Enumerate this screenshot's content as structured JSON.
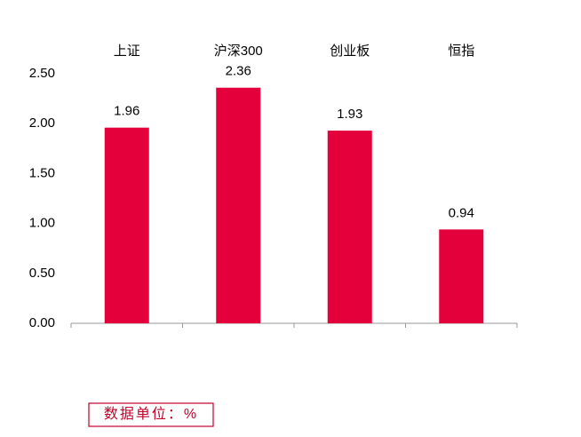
{
  "chart_data": {
    "type": "bar",
    "categories": [
      "上证",
      "沪深300",
      "创业板",
      "恒指"
    ],
    "values": [
      1.96,
      2.36,
      1.93,
      0.94
    ],
    "color": "#e4003a",
    "ylim": [
      0,
      2.5
    ],
    "yticks": [
      {
        "value": 0,
        "label": "0.00"
      },
      {
        "value": 0.5,
        "label": "0.50"
      },
      {
        "value": 1,
        "label": "1.00"
      },
      {
        "value": 1.5,
        "label": "1.50"
      },
      {
        "value": 2,
        "label": "2.00"
      },
      {
        "value": 2.5,
        "label": "2.50"
      }
    ],
    "grid": false,
    "annotation": "数据单位：%"
  }
}
